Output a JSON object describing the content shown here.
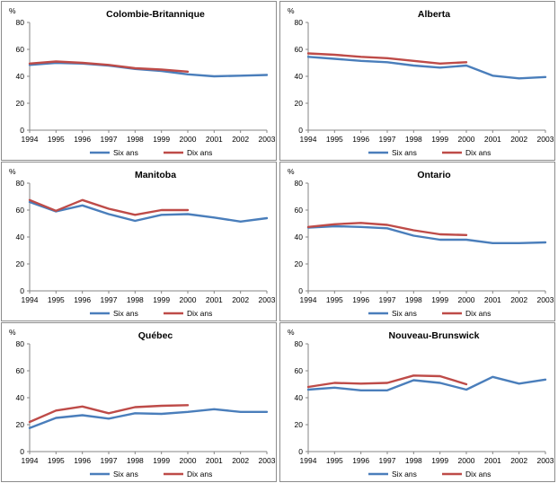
{
  "series_names": [
    "Six ans",
    "Dix ans"
  ],
  "colors": {
    "six": "#4a7ebb",
    "dix": "#be4b48",
    "axis": "#868686",
    "frame": "#8c8c8c"
  },
  "unit_label": "%",
  "chart_data": [
    {
      "type": "line",
      "title": "Colombie-Britannique",
      "ylabel": "%",
      "ylim": [
        0,
        80
      ],
      "yticks": [
        0,
        20,
        40,
        60,
        80
      ],
      "categories": [
        "1994",
        "1995",
        "1996",
        "1997",
        "1998",
        "1999",
        "2000",
        "2001",
        "2002",
        "2003"
      ],
      "series": [
        {
          "name": "Six ans",
          "values": [
            48.5,
            50,
            49.5,
            48,
            45.5,
            44,
            41.5,
            40,
            40.5,
            41
          ]
        },
        {
          "name": "Dix ans",
          "values": [
            49.5,
            51,
            50,
            48.5,
            46,
            45,
            43.5,
            null,
            null,
            null
          ]
        }
      ]
    },
    {
      "type": "line",
      "title": "Alberta",
      "ylabel": "%",
      "ylim": [
        0,
        80
      ],
      "yticks": [
        0,
        20,
        40,
        60,
        80
      ],
      "categories": [
        "1994",
        "1995",
        "1996",
        "1997",
        "1998",
        "1999",
        "2000",
        "2001",
        "2002",
        "2003"
      ],
      "series": [
        {
          "name": "Six ans",
          "values": [
            54.5,
            53,
            51.5,
            50.5,
            48,
            46.5,
            48,
            40.5,
            38.5,
            39.5
          ]
        },
        {
          "name": "Dix ans",
          "values": [
            57,
            56,
            54.5,
            53.5,
            51.5,
            49.5,
            50.5,
            null,
            null,
            null
          ]
        }
      ]
    },
    {
      "type": "line",
      "title": "Manitoba",
      "ylabel": "%",
      "ylim": [
        0,
        80
      ],
      "yticks": [
        0,
        20,
        40,
        60,
        80
      ],
      "categories": [
        "1994",
        "1995",
        "1996",
        "1997",
        "1998",
        "1999",
        "2000",
        "2001",
        "2002",
        "2003"
      ],
      "series": [
        {
          "name": "Six ans",
          "values": [
            66,
            59,
            63.5,
            57,
            52,
            56.5,
            57,
            54.5,
            51.5,
            54
          ]
        },
        {
          "name": "Dix ans",
          "values": [
            67.5,
            59.5,
            67.5,
            61,
            56.5,
            60,
            60,
            null,
            null,
            null
          ]
        }
      ]
    },
    {
      "type": "line",
      "title": "Ontario",
      "ylabel": "%",
      "ylim": [
        0,
        80
      ],
      "yticks": [
        0,
        20,
        40,
        60,
        80
      ],
      "categories": [
        "1994",
        "1995",
        "1996",
        "1997",
        "1998",
        "1999",
        "2000",
        "2001",
        "2002",
        "2003"
      ],
      "series": [
        {
          "name": "Six ans",
          "values": [
            47,
            48,
            47.5,
            46.5,
            41,
            38,
            38,
            35.5,
            35.5,
            36
          ]
        },
        {
          "name": "Dix ans",
          "values": [
            47.5,
            49.5,
            50.5,
            49,
            45,
            42,
            41.5,
            null,
            null,
            null
          ]
        }
      ]
    },
    {
      "type": "line",
      "title": "Québec",
      "ylabel": "%",
      "ylim": [
        0,
        80
      ],
      "yticks": [
        0,
        20,
        40,
        60,
        80
      ],
      "categories": [
        "1994",
        "1995",
        "1996",
        "1997",
        "1998",
        "1999",
        "2000",
        "2001",
        "2002",
        "2003"
      ],
      "series": [
        {
          "name": "Six ans",
          "values": [
            17.5,
            25,
            27,
            24.5,
            28.5,
            28,
            29.5,
            31.5,
            29.5,
            29.5
          ]
        },
        {
          "name": "Dix ans",
          "values": [
            22,
            30.5,
            33.5,
            28.5,
            33,
            34,
            34.5,
            null,
            null,
            null
          ]
        }
      ]
    },
    {
      "type": "line",
      "title": "Nouveau-Brunswick",
      "ylabel": "%",
      "ylim": [
        0,
        80
      ],
      "yticks": [
        0,
        20,
        40,
        60,
        80
      ],
      "categories": [
        "1994",
        "1995",
        "1996",
        "1997",
        "1998",
        "1999",
        "2000",
        "2001",
        "2002",
        "2003"
      ],
      "series": [
        {
          "name": "Six ans",
          "values": [
            46,
            47.5,
            45.5,
            45.5,
            53,
            51,
            46,
            55.5,
            50.5,
            53.5
          ]
        },
        {
          "name": "Dix ans",
          "values": [
            48,
            51,
            50.5,
            51,
            56.5,
            56,
            50,
            null,
            null,
            null
          ]
        }
      ]
    }
  ]
}
